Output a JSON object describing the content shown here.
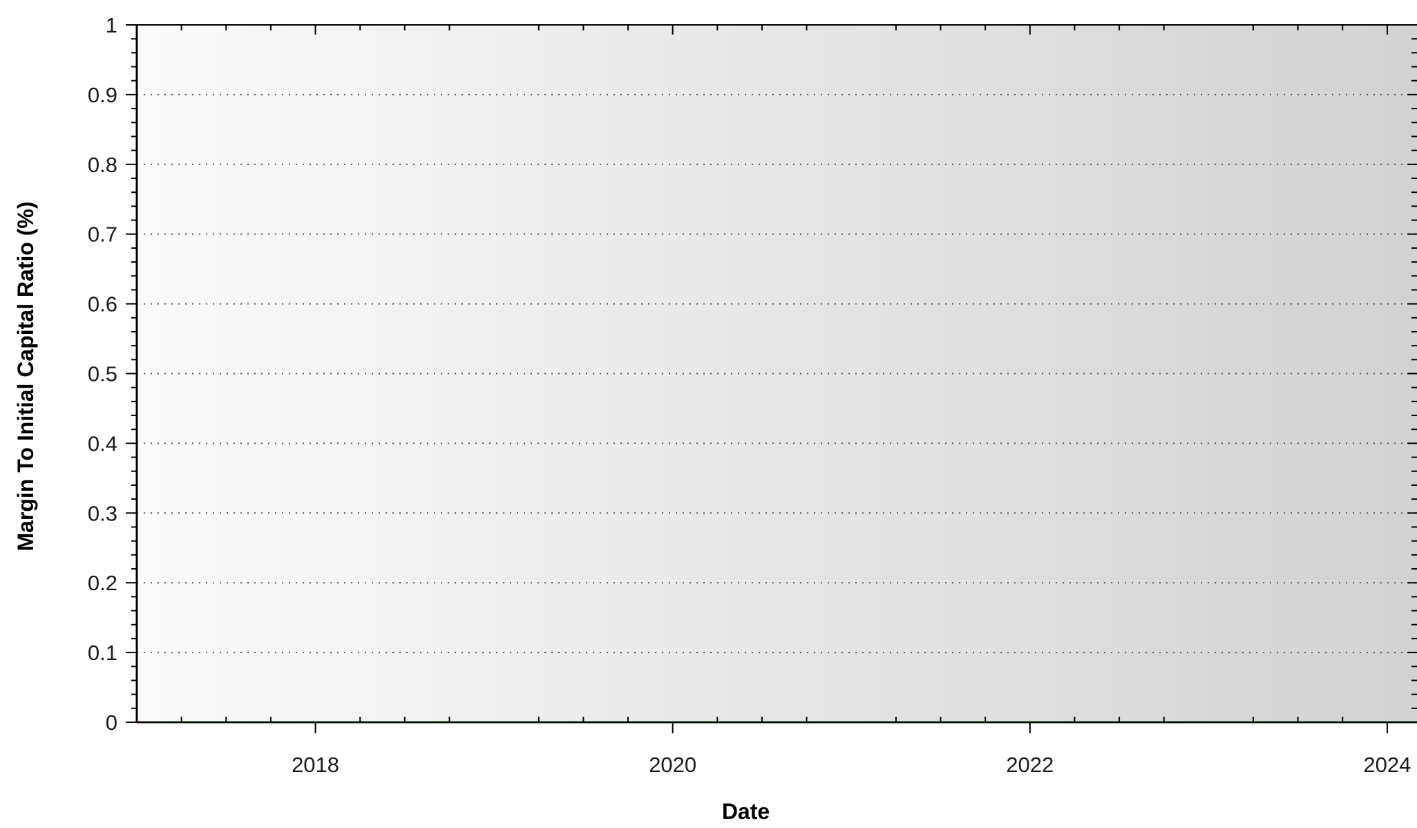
{
  "chart_data": {
    "type": "line",
    "title": "",
    "xlabel": "Date",
    "ylabel": "Margin To Initial Capital Ratio (%)",
    "x_ticks": [
      "2018",
      "2020",
      "2022",
      "2024"
    ],
    "y_ticks": [
      "0",
      "0.1",
      "0.2",
      "0.3",
      "0.4",
      "0.5",
      "0.6",
      "0.7",
      "0.8",
      "0.9",
      "1"
    ],
    "ylim": [
      0,
      1
    ],
    "xlim": [
      "2017-01",
      "2024-03"
    ],
    "grid": "horizontal-dotted",
    "series": [
      {
        "color": "#cc0000",
        "points": [
          {
            "x": "2017-01",
            "y": 0
          },
          {
            "x": "2024-03",
            "y": 0
          }
        ]
      }
    ],
    "colors": {
      "plot_gradient_start": "#fafafa",
      "plot_gradient_end": "#d2d2d2",
      "grid": "#555555",
      "axis": "#000000",
      "series_line": "#cc0000"
    }
  }
}
